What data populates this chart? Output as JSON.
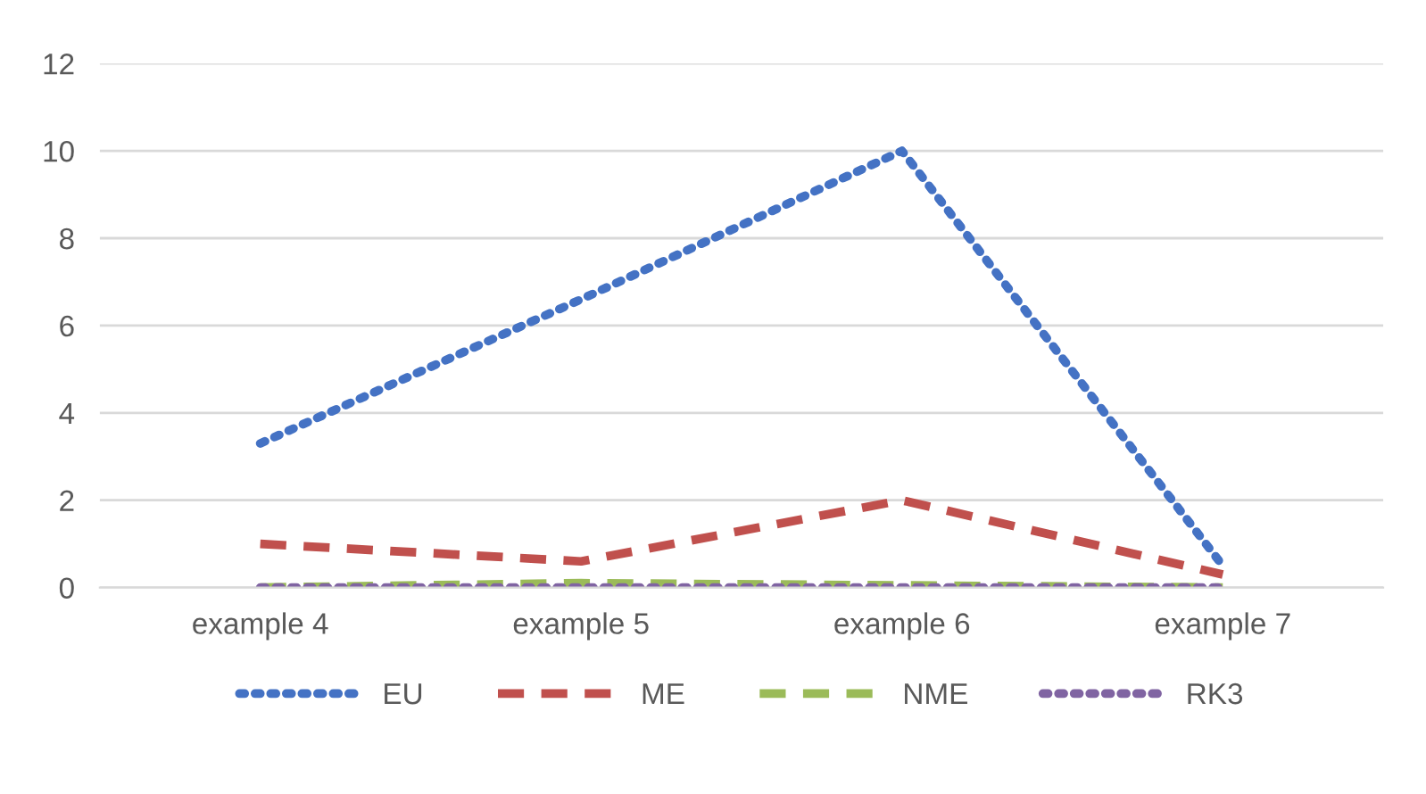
{
  "chart_data": {
    "type": "line",
    "categories": [
      "example 4",
      "example 5",
      "example 6",
      "example 7"
    ],
    "series": [
      {
        "name": "EU",
        "color": "#4472c4",
        "line_style": "dotted",
        "values": [
          3.3,
          6.6,
          10.0,
          0.5
        ]
      },
      {
        "name": "ME",
        "color": "#c0504d",
        "line_style": "dashed",
        "values": [
          1.0,
          0.6,
          2.0,
          0.3
        ]
      },
      {
        "name": "NME",
        "color": "#9bbb59",
        "line_style": "dashed",
        "values": [
          0.0,
          0.1,
          0.05,
          0.0
        ]
      },
      {
        "name": "RK3",
        "color": "#8064a2",
        "line_style": "dotted",
        "values": [
          0.0,
          0.0,
          0.0,
          0.0
        ]
      }
    ],
    "ylim": [
      0,
      12
    ],
    "yticks": [
      0,
      2,
      4,
      6,
      8,
      10,
      12
    ],
    "grid": "y",
    "legend": "bottom",
    "marker": "none"
  }
}
